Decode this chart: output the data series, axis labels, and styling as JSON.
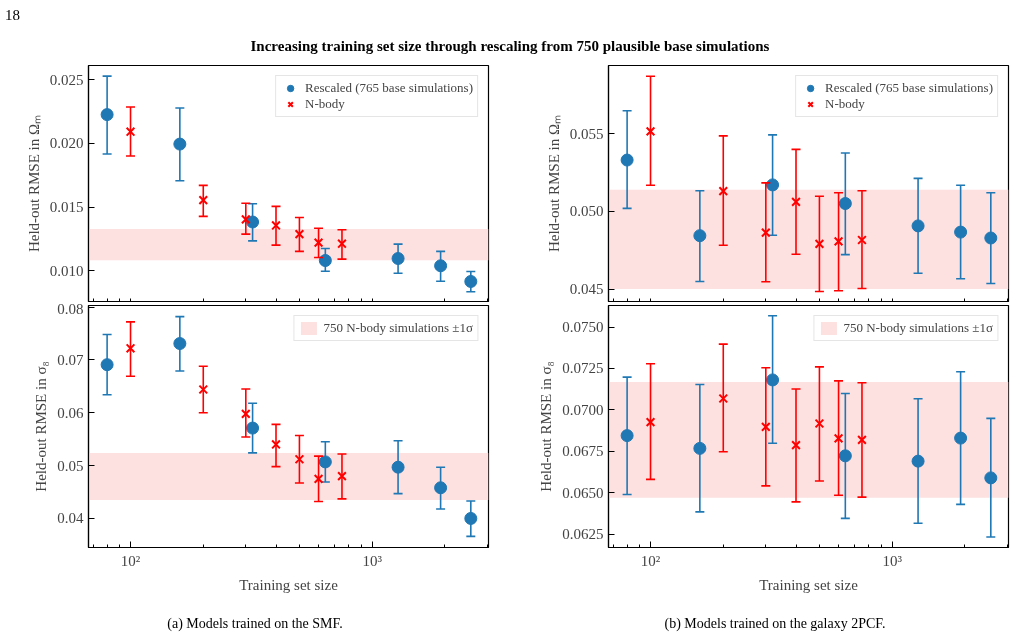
{
  "chart_data": [
    {
      "type": "scatter",
      "title": "Increasing training set size through rescaling from 750 plausible base simulations",
      "annotations": [
        "18"
      ],
      "ylabel": "Held-out RMSE in Ωₘ",
      "log": "x",
      "xlim": [
        67,
        3030
      ],
      "ylim": [
        0.0076,
        0.0261
      ],
      "xticks": [
        {
          "value": 70,
          "label": null
        },
        {
          "value": 80,
          "label": null
        },
        {
          "value": 90,
          "label": null
        },
        {
          "value": 100,
          "label": null
        },
        {
          "value": 200,
          "label": null
        },
        {
          "value": 300,
          "label": null
        },
        {
          "value": 400,
          "label": null
        },
        {
          "value": 500,
          "label": null
        },
        {
          "value": 600,
          "label": null
        },
        {
          "value": 700,
          "label": null
        },
        {
          "value": 800,
          "label": null
        },
        {
          "value": 900,
          "label": null
        },
        {
          "value": 1000,
          "label": null
        },
        {
          "value": 2000,
          "label": null
        },
        {
          "value": 3000,
          "label": null
        }
      ],
      "yticks": [
        {
          "value": 0.01,
          "label": "0.010"
        },
        0.015,
        {
          "value": 0.02,
          "label": "0.020"
        },
        0.025
      ],
      "tick_labels": "y",
      "legend": "top right",
      "bands": [
        {
          "axis": "y",
          "from": 0.01083,
          "to": 0.01328,
          "color": "#fde0e0"
        }
      ],
      "series": [
        {
          "name": "Rescaled (765 base simulations)",
          "color": "#1f77b4",
          "marker": "circle",
          "x": [
            80,
            160,
            320,
            640,
            1280,
            1920,
            2560
          ],
          "values": [
            0.02225,
            0.01994,
            0.01383,
            0.01081,
            0.01097,
            0.0104,
            0.00917
          ],
          "errors": [
            [
              0.01916,
              0.02527
            ],
            [
              0.01706,
              0.02277
            ],
            [
              0.01235,
              0.01526
            ],
            [
              0.00997,
              0.01175
            ],
            [
              0.00981,
              0.0121
            ],
            [
              0.00919,
              0.01153
            ],
            [
              0.00836,
              0.00995
            ]
          ]
        },
        {
          "name": "N-body",
          "color": "#ff0000",
          "marker": "cross",
          "x": [
            100,
            200,
            300,
            400,
            500,
            600,
            750
          ],
          "values": [
            0.02091,
            0.01555,
            0.01404,
            0.01356,
            0.01288,
            0.01221,
            0.01213
          ],
          "errors": [
            [
              0.019,
              0.02285
            ],
            [
              0.01427,
              0.0167
            ],
            [
              0.01288,
              0.0153
            ],
            [
              0.01202,
              0.01506
            ],
            [
              0.01153,
              0.01418
            ],
            [
              0.01105,
              0.01334
            ],
            [
              0.01092,
              0.01323
            ]
          ]
        }
      ]
    },
    {
      "type": "scatter",
      "xlabel": "Training set size",
      "ylabel": "Held-out RMSE in σ₈",
      "annotations": [
        "(a) Models trained on the SMF."
      ],
      "log": "x",
      "xlim": [
        67,
        3030
      ],
      "ylim": [
        0.0345,
        0.0803
      ],
      "xticks": [
        {
          "value": 70,
          "label": null
        },
        {
          "value": 80,
          "label": null
        },
        {
          "value": 90,
          "label": null
        },
        {
          "value": 100,
          "label": "10²"
        },
        {
          "value": 200,
          "label": null
        },
        {
          "value": 300,
          "label": null
        },
        {
          "value": 400,
          "label": null
        },
        {
          "value": 500,
          "label": null
        },
        {
          "value": 600,
          "label": null
        },
        {
          "value": 700,
          "label": null
        },
        {
          "value": 800,
          "label": null
        },
        {
          "value": 900,
          "label": null
        },
        {
          "value": 1000,
          "label": "10³"
        },
        {
          "value": 2000,
          "label": null
        },
        {
          "value": 3000,
          "label": null
        }
      ],
      "yticks": [
        0.04,
        0.05,
        0.06,
        0.07,
        0.08
      ],
      "legend": "top right",
      "bands": [
        {
          "axis": "y",
          "from": 0.0435,
          "to": 0.0524,
          "color": "#fde0e0",
          "label": "750 N-body simulations ±1σ"
        }
      ],
      "series": [
        {
          "color": "#1f77b4",
          "marker": "circle",
          "x": [
            80,
            160,
            320,
            640,
            1280,
            1920,
            2560
          ],
          "values": [
            0.0691,
            0.0731,
            0.0571,
            0.0507,
            0.0497,
            0.0458,
            0.04
          ],
          "errors": [
            [
              0.0634,
              0.0748
            ],
            [
              0.0679,
              0.0782
            ],
            [
              0.0524,
              0.0618
            ],
            [
              0.0469,
              0.0545
            ],
            [
              0.0447,
              0.0547
            ],
            [
              0.0418,
              0.0497
            ],
            [
              0.0366,
              0.0433
            ]
          ]
        },
        {
          "color": "#ff0000",
          "marker": "cross",
          "x": [
            100,
            200,
            300,
            400,
            500,
            600,
            750
          ],
          "values": [
            0.0722,
            0.0644,
            0.0598,
            0.054,
            0.0512,
            0.0475,
            0.048
          ],
          "errors": [
            [
              0.0669,
              0.0772
            ],
            [
              0.06,
              0.0688
            ],
            [
              0.0554,
              0.0645
            ],
            [
              0.0498,
              0.0578
            ],
            [
              0.0467,
              0.0557
            ],
            [
              0.0432,
              0.0518
            ],
            [
              0.0437,
              0.0522
            ]
          ]
        }
      ]
    },
    {
      "type": "scatter",
      "ylabel": "Held-out RMSE in Ωₘ",
      "log": "x",
      "xlim": [
        67,
        3030
      ],
      "ylim": [
        0.0442,
        0.0594
      ],
      "xticks": [
        {
          "value": 70,
          "label": null
        },
        {
          "value": 80,
          "label": null
        },
        {
          "value": 90,
          "label": null
        },
        {
          "value": 100,
          "label": null
        },
        {
          "value": 200,
          "label": null
        },
        {
          "value": 300,
          "label": null
        },
        {
          "value": 400,
          "label": null
        },
        {
          "value": 500,
          "label": null
        },
        {
          "value": 600,
          "label": null
        },
        {
          "value": 700,
          "label": null
        },
        {
          "value": 800,
          "label": null
        },
        {
          "value": 900,
          "label": null
        },
        {
          "value": 1000,
          "label": null
        },
        {
          "value": 2000,
          "label": null
        },
        {
          "value": 3000,
          "label": null
        }
      ],
      "yticks": [
        0.045,
        {
          "value": 0.05,
          "label": "0.050"
        },
        0.055
      ],
      "tick_labels": "y",
      "legend": "top right",
      "bands": [
        {
          "axis": "y",
          "from": 0.045,
          "to": 0.0514,
          "color": "#fde0e0"
        }
      ],
      "series": [
        {
          "name": "Rescaled (765 base simulations)",
          "color": "#1f77b4",
          "marker": "circle",
          "x": [
            80,
            160,
            320,
            640,
            1280,
            1920,
            2560
          ],
          "values": [
            0.05331,
            0.04844,
            0.05171,
            0.05051,
            0.04907,
            0.04867,
            0.04829
          ],
          "errors": [
            [
              0.0502,
              0.05649
            ],
            [
              0.04549,
              0.05133
            ],
            [
              0.04847,
              0.05493
            ],
            [
              0.04722,
              0.05376
            ],
            [
              0.04602,
              0.05213
            ],
            [
              0.04567,
              0.05169
            ],
            [
              0.04536,
              0.0512
            ]
          ]
        },
        {
          "name": "N-body",
          "color": "#ff0000",
          "marker": "cross",
          "x": [
            100,
            200,
            300,
            400,
            500,
            600,
            750
          ],
          "values": [
            0.05516,
            0.05131,
            0.04864,
            0.05062,
            0.04791,
            0.04807,
            0.04816
          ],
          "errors": [
            [
              0.05169,
              0.05871
            ],
            [
              0.04782,
              0.05487
            ],
            [
              0.04547,
              0.05184
            ],
            [
              0.04724,
              0.054
            ],
            [
              0.04484,
              0.05098
            ],
            [
              0.04489,
              0.0512
            ],
            [
              0.04504,
              0.05133
            ]
          ]
        }
      ]
    },
    {
      "type": "scatter",
      "xlabel": "Training set size",
      "ylabel": "Held-out RMSE in σ₈",
      "annotations": [
        "(b) Models trained on the galaxy 2PCF."
      ],
      "log": "x",
      "xlim": [
        67,
        3030
      ],
      "ylim": [
        0.0617,
        0.0763
      ],
      "xticks": [
        {
          "value": 70,
          "label": null
        },
        {
          "value": 80,
          "label": null
        },
        {
          "value": 90,
          "label": null
        },
        {
          "value": 100,
          "label": "10²"
        },
        {
          "value": 200,
          "label": null
        },
        {
          "value": 300,
          "label": null
        },
        {
          "value": 400,
          "label": null
        },
        {
          "value": 500,
          "label": null
        },
        {
          "value": 600,
          "label": null
        },
        {
          "value": 700,
          "label": null
        },
        {
          "value": 800,
          "label": null
        },
        {
          "value": 900,
          "label": null
        },
        {
          "value": 1000,
          "label": "10³"
        },
        {
          "value": 2000,
          "label": null
        },
        {
          "value": 3000,
          "label": null
        }
      ],
      "yticks": [
        0.0625,
        {
          "value": 0.065,
          "label": "0.0650"
        },
        0.0675,
        {
          "value": 0.07,
          "label": "0.0700"
        },
        0.0725,
        {
          "value": 0.075,
          "label": "0.0750"
        }
      ],
      "legend": "top right",
      "bands": [
        {
          "axis": "y",
          "from": 0.0647,
          "to": 0.07168,
          "color": "#fde0e0",
          "label": "750 N-body simulations ±1σ"
        }
      ],
      "series": [
        {
          "color": "#1f77b4",
          "marker": "circle",
          "x": [
            80,
            160,
            320,
            640,
            1280,
            1920,
            2560
          ],
          "values": [
            0.06845,
            0.06768,
            0.07181,
            0.06723,
            0.06691,
            0.0683,
            0.0659
          ],
          "errors": [
            [
              0.0649,
              0.07198
            ],
            [
              0.06385,
              0.07153
            ],
            [
              0.06799,
              0.07568
            ],
            [
              0.06346,
              0.07099
            ],
            [
              0.06316,
              0.07067
            ],
            [
              0.0643,
              0.0723
            ],
            [
              0.06233,
              0.06949
            ]
          ]
        },
        {
          "color": "#ff0000",
          "marker": "cross",
          "x": [
            100,
            200,
            300,
            400,
            500,
            600,
            750
          ],
          "values": [
            0.06926,
            0.07069,
            0.06898,
            0.06788,
            0.06918,
            0.06828,
            0.06819
          ],
          "errors": [
            [
              0.06581,
              0.07279
            ],
            [
              0.06748,
              0.07397
            ],
            [
              0.06542,
              0.07254
            ],
            [
              0.06445,
              0.07126
            ],
            [
              0.06571,
              0.0726
            ],
            [
              0.06485,
              0.07175
            ],
            [
              0.06474,
              0.07164
            ]
          ]
        }
      ]
    }
  ]
}
